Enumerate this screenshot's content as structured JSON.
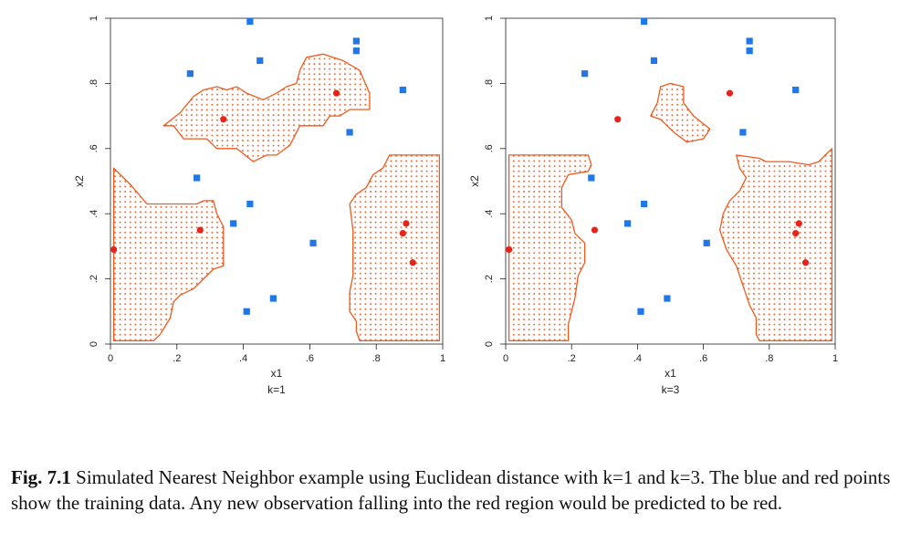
{
  "chart_data": [
    {
      "type": "scatter",
      "subtitle": "k=1",
      "xlabel": "x1",
      "ylabel": "x2",
      "xlim": [
        0,
        1
      ],
      "ylim": [
        0,
        1
      ],
      "xticks": [
        "0",
        ".2",
        ".4",
        ".6",
        ".8",
        "1"
      ],
      "yticks": [
        "0",
        ".2",
        ".4",
        ".6",
        ".8",
        "1"
      ],
      "grid": false,
      "series": [
        {
          "color": "#1f77e8",
          "marker": "square",
          "points": [
            [
              0.42,
              0.99
            ],
            [
              0.45,
              0.87
            ],
            [
              0.74,
              0.93
            ],
            [
              0.74,
              0.9
            ],
            [
              0.24,
              0.83
            ],
            [
              0.88,
              0.78
            ],
            [
              0.72,
              0.65
            ],
            [
              0.26,
              0.51
            ],
            [
              0.42,
              0.43
            ],
            [
              0.37,
              0.37
            ],
            [
              0.61,
              0.31
            ],
            [
              0.49,
              0.14
            ],
            [
              0.41,
              0.1
            ]
          ]
        },
        {
          "color": "#e8231a",
          "marker": "circle",
          "points": [
            [
              0.34,
              0.69
            ],
            [
              0.68,
              0.77
            ],
            [
              0.01,
              0.29
            ],
            [
              0.27,
              0.35
            ],
            [
              0.89,
              0.37
            ],
            [
              0.88,
              0.34
            ],
            [
              0.91,
              0.25
            ]
          ]
        }
      ],
      "regions": [
        {
          "color": "#f05a1e",
          "fill": "dotted",
          "polygons": [
            [
              [
                0.16,
                0.67
              ],
              [
                0.19,
                0.67
              ],
              [
                0.22,
                0.63
              ],
              [
                0.29,
                0.63
              ],
              [
                0.32,
                0.6
              ],
              [
                0.38,
                0.6
              ],
              [
                0.43,
                0.56
              ],
              [
                0.47,
                0.58
              ],
              [
                0.5,
                0.58
              ],
              [
                0.54,
                0.61
              ],
              [
                0.57,
                0.67
              ],
              [
                0.64,
                0.67
              ],
              [
                0.66,
                0.7
              ],
              [
                0.69,
                0.7
              ],
              [
                0.72,
                0.72
              ],
              [
                0.78,
                0.72
              ],
              [
                0.78,
                0.77
              ],
              [
                0.75,
                0.84
              ],
              [
                0.7,
                0.87
              ],
              [
                0.64,
                0.89
              ],
              [
                0.59,
                0.88
              ],
              [
                0.57,
                0.84
              ],
              [
                0.56,
                0.8
              ],
              [
                0.53,
                0.79
              ],
              [
                0.5,
                0.77
              ],
              [
                0.46,
                0.75
              ],
              [
                0.41,
                0.77
              ],
              [
                0.38,
                0.79
              ],
              [
                0.35,
                0.78
              ],
              [
                0.32,
                0.79
              ],
              [
                0.28,
                0.78
              ],
              [
                0.25,
                0.76
              ],
              [
                0.21,
                0.71
              ]
            ],
            [
              [
                0.01,
                0.54
              ],
              [
                0.06,
                0.49
              ],
              [
                0.11,
                0.43
              ],
              [
                0.21,
                0.43
              ],
              [
                0.26,
                0.43
              ],
              [
                0.28,
                0.44
              ],
              [
                0.31,
                0.44
              ],
              [
                0.32,
                0.4
              ],
              [
                0.34,
                0.36
              ],
              [
                0.34,
                0.24
              ],
              [
                0.31,
                0.23
              ],
              [
                0.28,
                0.2
              ],
              [
                0.25,
                0.17
              ],
              [
                0.21,
                0.15
              ],
              [
                0.19,
                0.13
              ],
              [
                0.18,
                0.08
              ],
              [
                0.15,
                0.03
              ],
              [
                0.13,
                0.01
              ],
              [
                0.01,
                0.01
              ]
            ],
            [
              [
                0.72,
                0.43
              ],
              [
                0.74,
                0.46
              ],
              [
                0.77,
                0.48
              ],
              [
                0.79,
                0.52
              ],
              [
                0.82,
                0.54
              ],
              [
                0.84,
                0.58
              ],
              [
                0.99,
                0.58
              ],
              [
                0.99,
                0.01
              ],
              [
                0.75,
                0.01
              ],
              [
                0.74,
                0.04
              ],
              [
                0.74,
                0.07
              ],
              [
                0.72,
                0.1
              ],
              [
                0.72,
                0.16
              ],
              [
                0.73,
                0.21
              ],
              [
                0.73,
                0.28
              ],
              [
                0.73,
                0.35
              ]
            ]
          ]
        }
      ]
    },
    {
      "type": "scatter",
      "subtitle": "k=3",
      "xlabel": "x1",
      "ylabel": "x2",
      "xlim": [
        0,
        1
      ],
      "ylim": [
        0,
        1
      ],
      "xticks": [
        "0",
        ".2",
        ".4",
        ".6",
        ".8",
        "1"
      ],
      "yticks": [
        "0",
        ".2",
        ".4",
        ".6",
        ".8",
        "1"
      ],
      "grid": false,
      "series": [
        {
          "color": "#1f77e8",
          "marker": "square",
          "points": [
            [
              0.42,
              0.99
            ],
            [
              0.45,
              0.87
            ],
            [
              0.74,
              0.93
            ],
            [
              0.74,
              0.9
            ],
            [
              0.24,
              0.83
            ],
            [
              0.88,
              0.78
            ],
            [
              0.72,
              0.65
            ],
            [
              0.26,
              0.51
            ],
            [
              0.42,
              0.43
            ],
            [
              0.37,
              0.37
            ],
            [
              0.61,
              0.31
            ],
            [
              0.49,
              0.14
            ],
            [
              0.41,
              0.1
            ]
          ]
        },
        {
          "color": "#e8231a",
          "marker": "circle",
          "points": [
            [
              0.34,
              0.69
            ],
            [
              0.68,
              0.77
            ],
            [
              0.01,
              0.29
            ],
            [
              0.27,
              0.35
            ],
            [
              0.89,
              0.37
            ],
            [
              0.88,
              0.34
            ],
            [
              0.91,
              0.25
            ]
          ]
        }
      ],
      "regions": [
        {
          "color": "#f05a1e",
          "fill": "dotted",
          "polygons": [
            [
              [
                0.44,
                0.7
              ],
              [
                0.46,
                0.74
              ],
              [
                0.47,
                0.79
              ],
              [
                0.5,
                0.8
              ],
              [
                0.54,
                0.79
              ],
              [
                0.54,
                0.74
              ],
              [
                0.57,
                0.7
              ],
              [
                0.62,
                0.66
              ],
              [
                0.6,
                0.63
              ],
              [
                0.55,
                0.62
              ],
              [
                0.51,
                0.65
              ],
              [
                0.49,
                0.67
              ],
              [
                0.47,
                0.69
              ]
            ],
            [
              [
                0.01,
                0.58
              ],
              [
                0.25,
                0.58
              ],
              [
                0.26,
                0.55
              ],
              [
                0.25,
                0.53
              ],
              [
                0.19,
                0.52
              ],
              [
                0.17,
                0.48
              ],
              [
                0.17,
                0.42
              ],
              [
                0.2,
                0.38
              ],
              [
                0.21,
                0.34
              ],
              [
                0.24,
                0.31
              ],
              [
                0.24,
                0.25
              ],
              [
                0.22,
                0.21
              ],
              [
                0.21,
                0.14
              ],
              [
                0.19,
                0.06
              ],
              [
                0.19,
                0.01
              ],
              [
                0.01,
                0.01
              ]
            ],
            [
              [
                0.7,
                0.58
              ],
              [
                0.71,
                0.54
              ],
              [
                0.73,
                0.51
              ],
              [
                0.71,
                0.47
              ],
              [
                0.68,
                0.44
              ],
              [
                0.66,
                0.4
              ],
              [
                0.65,
                0.35
              ],
              [
                0.67,
                0.29
              ],
              [
                0.7,
                0.24
              ],
              [
                0.72,
                0.18
              ],
              [
                0.74,
                0.12
              ],
              [
                0.76,
                0.08
              ],
              [
                0.76,
                0.03
              ],
              [
                0.77,
                0.01
              ],
              [
                0.99,
                0.01
              ],
              [
                0.99,
                0.6
              ],
              [
                0.97,
                0.58
              ],
              [
                0.95,
                0.56
              ],
              [
                0.92,
                0.55
              ],
              [
                0.86,
                0.56
              ],
              [
                0.79,
                0.56
              ],
              [
                0.77,
                0.57
              ]
            ]
          ]
        }
      ]
    }
  ],
  "caption": {
    "label": "Fig. 7.1",
    "text": "Simulated Nearest Neighbor example using Euclidean distance with k=1 and k=3. The blue and red points show the training data. Any new observation falling into the red region would be predicted to be red."
  }
}
